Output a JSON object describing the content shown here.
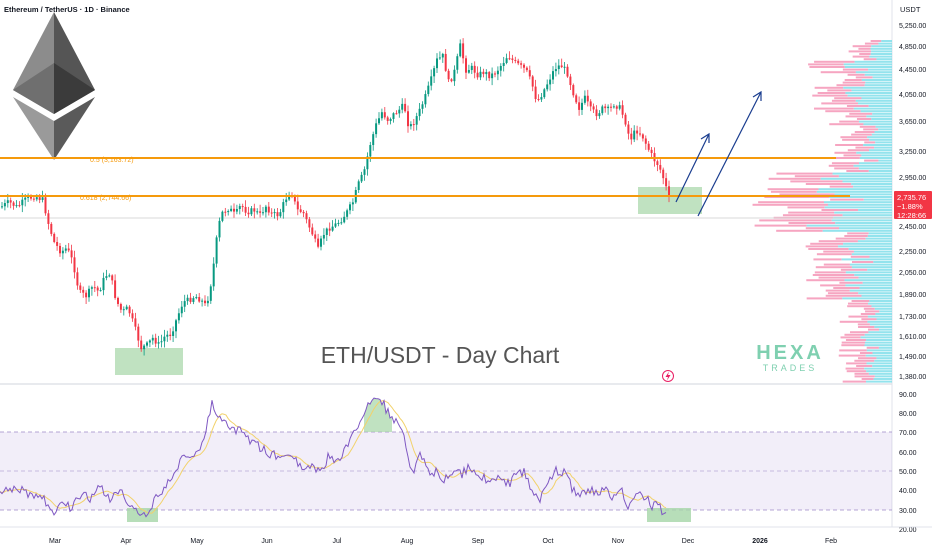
{
  "header": {
    "symbol_line": "Ethereum / TetherUS · 1D · Binance",
    "currency": "USDT"
  },
  "watermark": "ETH/USDT - Day Chart",
  "brand": {
    "line1": "HEXA",
    "line2": "TRADES"
  },
  "price_axis": {
    "ticks": [
      "5,250.00",
      "4,850.00",
      "4,450.00",
      "4,050.00",
      "3,650.00",
      "3,250.00",
      "2,950.00",
      "2,650.00",
      "2,450.00",
      "2,250.00",
      "2,050.00",
      "1,890.00",
      "1,730.00",
      "1,610.00",
      "1,490.00",
      "1,380.00"
    ],
    "current_price": "2,735.76",
    "change": "−1.88%",
    "countdown": "12:28:66"
  },
  "fib_levels": [
    {
      "label": "0.5 (3,163.72)",
      "value": 3163.72,
      "color": "#f59a0c"
    },
    {
      "label": "0.618 (2,744.66)",
      "value": 2744.66,
      "color": "#f59a0c"
    }
  ],
  "rsi_axis": {
    "ticks": [
      "90.00",
      "80.00",
      "70.00",
      "60.00",
      "50.00",
      "40.00",
      "30.00",
      "20.00"
    ]
  },
  "time_axis": {
    "labels": [
      "Mar",
      "Apr",
      "May",
      "Jun",
      "Jul",
      "Aug",
      "Sep",
      "Oct",
      "Nov",
      "Dec",
      "2026",
      "Feb"
    ]
  },
  "colors": {
    "up": "#089981",
    "down": "#f23645",
    "fib": "#f59a0c",
    "support_box": "#a5d6a7",
    "arrow": "#1a3d8f",
    "rsi_line": "#7e57c2",
    "rsi_ma": "#f2d26b",
    "price_tag": "#f23645",
    "volume_profile_down": "#f48fb1",
    "volume_profile_up": "#80deea"
  },
  "icons": [
    "ethereum-logo",
    "lightning-icon"
  ],
  "chart_data": {
    "type": "candlestick",
    "title": "ETH/USDT - Day Chart",
    "x_labels": [
      "Mar",
      "Apr",
      "May",
      "Jun",
      "Jul",
      "Aug",
      "Sep",
      "Oct",
      "Nov",
      "Dec",
      "2026",
      "Feb"
    ],
    "price_range": [
      1380,
      5250
    ],
    "price_scale": "log",
    "key_points": [
      {
        "date": "Mar",
        "price": 2200
      },
      {
        "date": "Apr",
        "price": 1500
      },
      {
        "date": "May",
        "price": 1800
      },
      {
        "date": "Jun",
        "price": 2600
      },
      {
        "date": "Jul",
        "price": 2450
      },
      {
        "date": "Aug",
        "price": 3700
      },
      {
        "date": "Sep",
        "price": 4500
      },
      {
        "date": "Oct",
        "price": 4300
      },
      {
        "date": "Nov",
        "price": 3400
      },
      {
        "date": "Nov",
        "price": 2735.76
      }
    ],
    "rsi": {
      "range": [
        20,
        90
      ],
      "band": [
        30,
        70
      ],
      "last": 30
    }
  }
}
